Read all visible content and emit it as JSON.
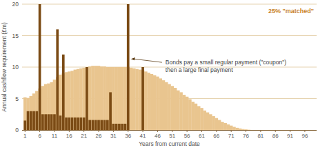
{
  "chart_data": {
    "type": "bar",
    "subtitle": "25% \"matched\"",
    "y_label": "Annual cashflow requirement (£m)",
    "x_label": "Years from current date",
    "annotation": {
      "lines": [
        "Bonds pay a small regular payment (\"coupon\")",
        "then a large final payment"
      ],
      "x": 36,
      "y": 11.3
    },
    "x": [
      1,
      2,
      3,
      4,
      5,
      6,
      7,
      8,
      9,
      10,
      11,
      12,
      13,
      14,
      15,
      16,
      17,
      18,
      19,
      20,
      21,
      22,
      23,
      24,
      25,
      26,
      27,
      28,
      29,
      30,
      31,
      32,
      33,
      34,
      35,
      36,
      37,
      38,
      39,
      40,
      41,
      42,
      43,
      44,
      45,
      46,
      47,
      48,
      49,
      50,
      51,
      52,
      53,
      54,
      55,
      56,
      57,
      58,
      59,
      60,
      61,
      62,
      63,
      64,
      65,
      66,
      67,
      68,
      69,
      70,
      71,
      72,
      73,
      74,
      75,
      76,
      77,
      78
    ],
    "series": [
      {
        "color": "#e9c58f",
        "values": [
          5.2,
          5.1,
          5.4,
          5.8,
          6.2,
          6.6,
          7.0,
          7.3,
          7.4,
          7.6,
          8.0,
          8.4,
          8.8,
          9.0,
          9.2,
          9.3,
          9.4,
          9.6,
          9.7,
          9.8,
          9.9,
          10.0,
          10.1,
          10.2,
          10.2,
          10.2,
          10.1,
          10.1,
          10.0,
          10.0,
          10.0,
          10.0,
          10.0,
          10.0,
          10.0,
          10.0,
          9.9,
          9.8,
          9.7,
          9.6,
          9.5,
          9.3,
          9.1,
          8.9,
          8.7,
          8.5,
          8.2,
          7.9,
          7.6,
          7.3,
          7.0,
          6.7,
          6.3,
          6.0,
          5.6,
          5.3,
          4.9,
          4.5,
          4.2,
          3.8,
          3.5,
          3.1,
          2.8,
          2.5,
          2.2,
          1.9,
          1.6,
          1.3,
          1.1,
          0.9,
          0.7,
          0.5,
          0.35,
          0.25,
          0.15,
          0.1,
          0.05,
          0
        ]
      },
      {
        "color": "#7b4b15",
        "values": [
          1.5,
          3,
          3,
          3,
          3,
          20,
          2.5,
          2.5,
          2.5,
          2.5,
          2.5,
          16,
          2.3,
          12,
          2,
          2,
          2,
          2,
          2,
          2,
          2,
          10,
          1.6,
          1.6,
          1.6,
          1.6,
          1.6,
          1.6,
          1.6,
          6,
          1,
          1,
          1,
          1,
          1,
          20,
          null,
          null,
          null,
          null,
          10,
          null,
          null,
          null,
          null,
          null,
          null,
          null,
          null,
          null,
          null,
          null,
          null,
          null,
          null,
          null,
          null,
          null,
          null,
          null,
          null,
          null,
          null,
          null,
          null,
          null,
          null,
          null,
          null,
          null,
          null,
          null,
          null,
          null,
          null,
          null,
          null,
          null
        ]
      }
    ],
    "xlim": [
      0,
      100
    ],
    "xticks": [
      1,
      6,
      11,
      16,
      21,
      26,
      31,
      36,
      41,
      46,
      51,
      56,
      61,
      66,
      71,
      76,
      81,
      86,
      91,
      96
    ],
    "ylim": [
      0,
      20
    ],
    "yticks": [
      0,
      5,
      10,
      15,
      20
    ],
    "grid": true
  }
}
